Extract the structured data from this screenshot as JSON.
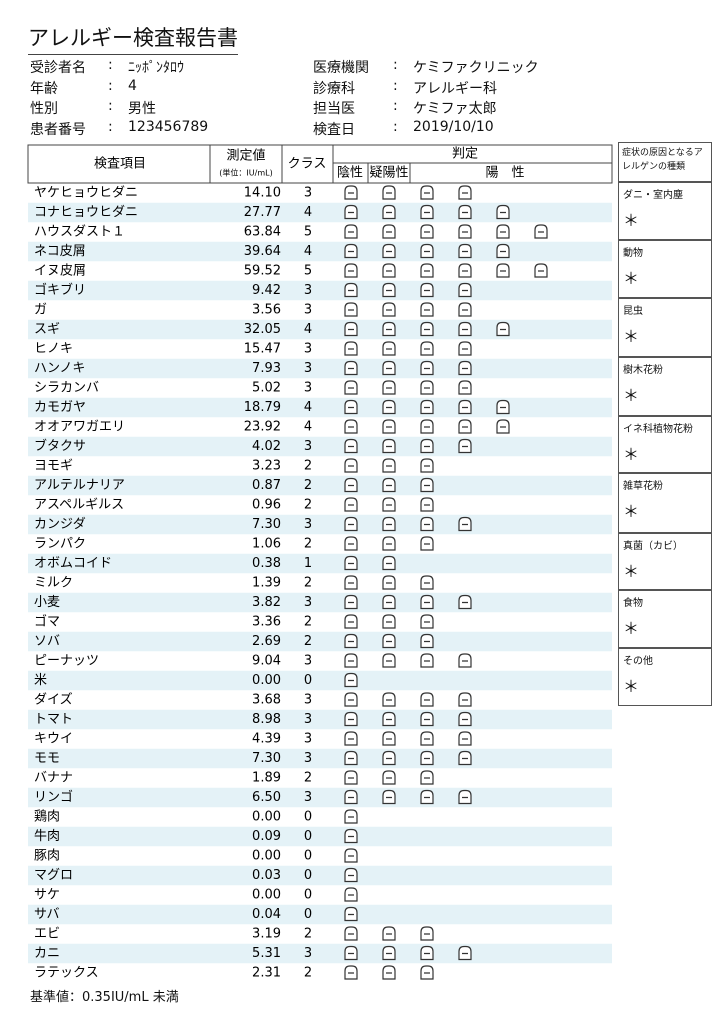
{
  "header": {
    "title": "アレルギー検査報告書",
    "separator": ":",
    "left": [
      {
        "label": "受診者名",
        "value": "ﾆｯﾎﾟﾝﾀﾛｳ"
      },
      {
        "label": "年齢",
        "value": "4"
      },
      {
        "label": "性別",
        "value": "男性"
      },
      {
        "label": "患者番号",
        "value": "123456789"
      }
    ],
    "right": [
      {
        "label": "医療機関",
        "value": "ケミファクリニック"
      },
      {
        "label": "診療科",
        "value": "アレルギー科"
      },
      {
        "label": "担当医",
        "value": "ケミファ太郎"
      },
      {
        "label": "検査日",
        "value": "2019/10/10"
      }
    ]
  },
  "table": {
    "headers": {
      "item": "検査項目",
      "value": "測定値",
      "unit": "(単位：IU/mL)",
      "class": "クラス",
      "judgement": "判定",
      "negative": "陰性",
      "borderline": "疑陽性",
      "positive": "陽　性"
    },
    "rows": [
      [
        "ヤケヒョウヒダニ",
        "14.10",
        3
      ],
      [
        "コナヒョウヒダニ",
        "27.77",
        4
      ],
      [
        "ハウスダスト１",
        "63.84",
        5
      ],
      [
        "ネコ皮屑",
        "39.64",
        4
      ],
      [
        "イヌ皮屑",
        "59.52",
        5
      ],
      [
        "ゴキブリ",
        "9.42",
        3
      ],
      [
        "ガ",
        "3.56",
        3
      ],
      [
        "スギ",
        "32.05",
        4
      ],
      [
        "ヒノキ",
        "15.47",
        3
      ],
      [
        "ハンノキ",
        "7.93",
        3
      ],
      [
        "シラカンバ",
        "5.02",
        3
      ],
      [
        "カモガヤ",
        "18.79",
        4
      ],
      [
        "オオアワガエリ",
        "23.92",
        4
      ],
      [
        "ブタクサ",
        "4.02",
        3
      ],
      [
        "ヨモギ",
        "3.23",
        2
      ],
      [
        "アルテルナリア",
        "0.87",
        2
      ],
      [
        "アスペルギルス",
        "0.96",
        2
      ],
      [
        "カンジダ",
        "7.30",
        3
      ],
      [
        "ランパク",
        "1.06",
        2
      ],
      [
        "オボムコイド",
        "0.38",
        1
      ],
      [
        "ミルク",
        "1.39",
        2
      ],
      [
        "小麦",
        "3.82",
        3
      ],
      [
        "ゴマ",
        "3.36",
        2
      ],
      [
        "ソバ",
        "2.69",
        2
      ],
      [
        "ピーナッツ",
        "9.04",
        3
      ],
      [
        "米",
        "0.00",
        0
      ],
      [
        "ダイズ",
        "3.68",
        3
      ],
      [
        "トマト",
        "8.98",
        3
      ],
      [
        "キウイ",
        "4.39",
        3
      ],
      [
        "モモ",
        "7.30",
        3
      ],
      [
        "バナナ",
        "1.89",
        2
      ],
      [
        "リンゴ",
        "6.50",
        3
      ],
      [
        "鶏肉",
        "0.00",
        0
      ],
      [
        "牛肉",
        "0.09",
        0
      ],
      [
        "豚肉",
        "0.00",
        0
      ],
      [
        "マグロ",
        "0.03",
        0
      ],
      [
        "サケ",
        "0.00",
        0
      ],
      [
        "サバ",
        "0.04",
        0
      ],
      [
        "エビ",
        "3.19",
        2
      ],
      [
        "カニ",
        "5.31",
        3
      ],
      [
        "ラテックス",
        "2.31",
        2
      ]
    ]
  },
  "footer": "基準値：0.35IU/mL 未満",
  "legend": {
    "title": "症状の原因となるアレルゲンの種類",
    "mark": "＊",
    "items": [
      "ダニ・室内塵",
      "動物",
      "昆虫",
      "樹木花粉",
      "イネ科植物花粉",
      "雑草花粉",
      "真菌（カビ）",
      "食物",
      "その他"
    ]
  }
}
